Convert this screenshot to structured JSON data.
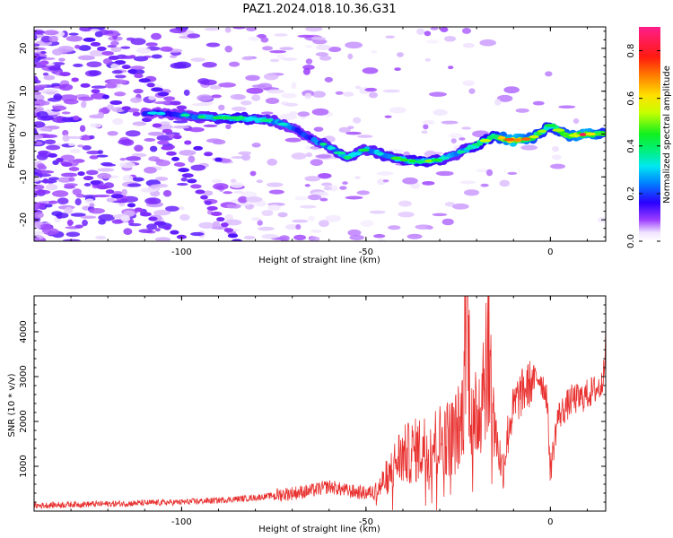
{
  "chart_data": [
    {
      "type": "heatmap",
      "title": "PAZ1.2024.018.10.36.G31",
      "xlabel": "Height of straight line (km)",
      "ylabel": "Frequency (Hz)",
      "xlim": [
        -140,
        15
      ],
      "ylim": [
        -25,
        25
      ],
      "xticks": [
        -100,
        -50,
        0
      ],
      "yticks": [
        -20,
        -10,
        0,
        10,
        20
      ],
      "colorbar": {
        "label": "Normalized spectral amplitude",
        "range": [
          0.0,
          0.9
        ],
        "ticks": [
          0.0,
          0.2,
          0.4,
          0.6,
          0.8
        ],
        "colormap": "gist_ncar-like (white, purple, blue, cyan, green, yellow, orange, red, magenta)"
      },
      "ridge": {
        "description": "dominant Doppler frequency track",
        "x": [
          -110,
          -100,
          -95,
          -90,
          -85,
          -80,
          -75,
          -70,
          -65,
          -60,
          -55,
          -50,
          -45,
          -40,
          -35,
          -30,
          -25,
          -20,
          -15,
          -10,
          -5,
          0,
          5,
          10,
          15
        ],
        "y": [
          5,
          4.5,
          4,
          3.8,
          3.8,
          3.5,
          3,
          1.5,
          -1,
          -3,
          -5.5,
          -3.5,
          -5,
          -6,
          -6.5,
          -6,
          -4.5,
          -2.5,
          -0.5,
          -1.5,
          -1,
          2,
          -0.5,
          0,
          0
        ],
        "peak_amplitude": [
          0.25,
          0.3,
          0.35,
          0.4,
          0.45,
          0.4,
          0.35,
          0.3,
          0.3,
          0.35,
          0.4,
          0.35,
          0.4,
          0.4,
          0.45,
          0.4,
          0.35,
          0.45,
          0.5,
          0.85,
          0.6,
          0.5,
          0.65,
          0.8,
          0.5
        ]
      }
    },
    {
      "type": "line",
      "xlabel": "Height of straight line (km)",
      "ylabel": "SNR (10 * v/v)",
      "xlim": [
        -140,
        15
      ],
      "ylim": [
        0,
        4800
      ],
      "xticks": [
        -100,
        -50,
        0
      ],
      "yticks": [
        1000,
        2000,
        3000,
        4000
      ],
      "color": "#e8312f",
      "x": [
        -140,
        -130,
        -120,
        -110,
        -100,
        -90,
        -80,
        -75,
        -70,
        -65,
        -60,
        -55,
        -50,
        -47,
        -44,
        -41,
        -38,
        -35,
        -32,
        -29,
        -26,
        -24,
        -23,
        -21,
        -19,
        -17,
        -15,
        -13,
        -11,
        -9,
        -7,
        -5,
        -3,
        -1,
        0,
        2,
        4,
        6,
        8,
        10,
        12,
        14,
        15
      ],
      "y": [
        120,
        150,
        160,
        180,
        200,
        240,
        300,
        350,
        400,
        450,
        550,
        450,
        400,
        450,
        800,
        1200,
        1300,
        1400,
        1500,
        1600,
        1700,
        2000,
        4800,
        1800,
        2500,
        3800,
        1800,
        900,
        2000,
        2500,
        2700,
        2900,
        3000,
        2600,
        900,
        2100,
        2300,
        2500,
        2500,
        2600,
        2700,
        2800,
        3800
      ]
    }
  ]
}
